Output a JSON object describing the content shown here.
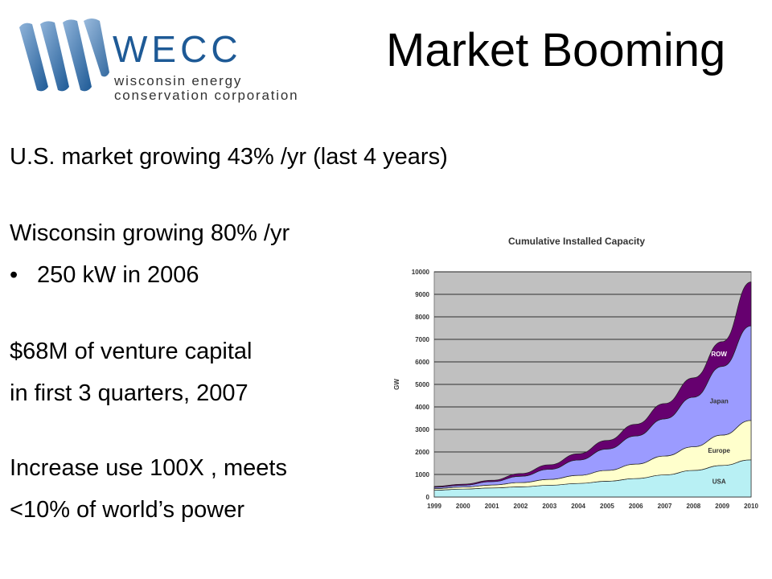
{
  "slide": {
    "title": "Market Booming",
    "logo": {
      "wordmark": "WECC",
      "line1": "wisconsin energy",
      "line2": "conservation corporation",
      "brand_color": "#1e5a96"
    },
    "lines": [
      "U.S. market growing 43% /yr (last 4 years)",
      "Wisconsin growing 80% /yr",
      "250 kW in 2006",
      "$68M of venture capital",
      "in first 3 quarters, 2007",
      "Increase use 100X , meets",
      "<10% of world’s power"
    ],
    "bullet_char": "•"
  },
  "chart_data": {
    "type": "area",
    "stacked": true,
    "title": "Cumulative Installed Capacity",
    "ylabel": "GW",
    "xlabel": "",
    "x": [
      "1999",
      "2000",
      "2001",
      "2002",
      "2003",
      "2004",
      "2005",
      "2006",
      "2007",
      "2008",
      "2009",
      "2010"
    ],
    "ylim": [
      0,
      10000
    ],
    "yticks": [
      0,
      1000,
      2000,
      3000,
      4000,
      5000,
      6000,
      7000,
      8000,
      9000,
      10000
    ],
    "grid": true,
    "plot_background": "#c0c0c0",
    "series": [
      {
        "name": "USA",
        "color": "#b8f0f4",
        "values": [
          300,
          350,
          400,
          450,
          520,
          600,
          700,
          820,
          980,
          1180,
          1400,
          1650
        ]
      },
      {
        "name": "Europe",
        "color": "#ffffcc",
        "values": [
          70,
          90,
          130,
          190,
          260,
          360,
          480,
          640,
          840,
          1050,
          1350,
          1750
        ]
      },
      {
        "name": "Japan",
        "color": "#9b9bff",
        "values": [
          60,
          80,
          150,
          280,
          450,
          680,
          950,
          1250,
          1650,
          2200,
          3050,
          4200
        ]
      },
      {
        "name": "ROW",
        "color": "#66006f",
        "values": [
          40,
          50,
          60,
          120,
          200,
          280,
          380,
          520,
          680,
          860,
          1100,
          1950
        ]
      }
    ]
  }
}
